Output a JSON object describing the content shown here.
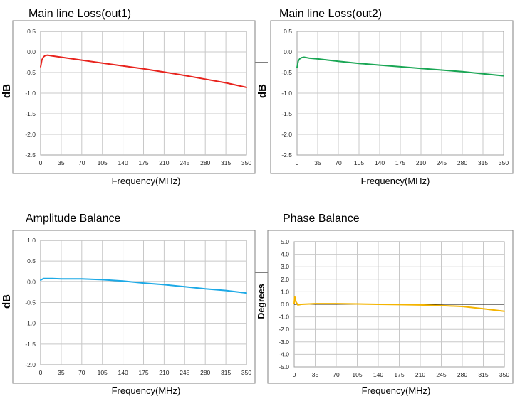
{
  "chart_data": [
    {
      "type": "line",
      "title": "Main line Loss(out1)",
      "xlabel": "Frequency(MHz)",
      "ylabel": "dB",
      "xlim": [
        0,
        350
      ],
      "ylim": [
        -2.5,
        0.5
      ],
      "x_ticks": [
        0,
        35,
        70,
        105,
        140,
        175,
        210,
        245,
        280,
        315,
        350
      ],
      "y_ticks": [
        "0.5",
        "0.0",
        "-0.5",
        "-1.0",
        "-1.5",
        "-2.0",
        "-2.5"
      ],
      "y_tick_values": [
        0.5,
        0.0,
        -0.5,
        -1.0,
        -1.5,
        -2.0,
        -2.5
      ],
      "grid": true,
      "series": [
        {
          "color": "#e8231d",
          "x": [
            0,
            2,
            5,
            8,
            12,
            20,
            35,
            70,
            105,
            140,
            175,
            210,
            245,
            280,
            315,
            350
          ],
          "y": [
            -0.36,
            -0.2,
            -0.12,
            -0.09,
            -0.08,
            -0.1,
            -0.13,
            -0.2,
            -0.27,
            -0.34,
            -0.41,
            -0.49,
            -0.57,
            -0.66,
            -0.75,
            -0.86
          ]
        }
      ]
    },
    {
      "type": "line",
      "title": "Main line Loss(out2)",
      "xlabel": "Frequency(MHz)",
      "ylabel": "dB",
      "xlim": [
        0,
        350
      ],
      "ylim": [
        -2.5,
        0.5
      ],
      "x_ticks": [
        0,
        35,
        70,
        105,
        140,
        175,
        210,
        245,
        280,
        315,
        350
      ],
      "y_ticks": [
        "0.5",
        "0.0",
        "-0.5",
        "-1.0",
        "-1.5",
        "-2.0",
        "-2.5"
      ],
      "y_tick_values": [
        0.5,
        0.0,
        -0.5,
        -1.0,
        -1.5,
        -2.0,
        -2.5
      ],
      "grid": true,
      "series": [
        {
          "color": "#19a654",
          "x": [
            0,
            2,
            5,
            8,
            12,
            20,
            35,
            70,
            105,
            140,
            175,
            210,
            245,
            280,
            315,
            350
          ],
          "y": [
            -0.38,
            -0.22,
            -0.16,
            -0.14,
            -0.13,
            -0.15,
            -0.17,
            -0.23,
            -0.28,
            -0.32,
            -0.36,
            -0.4,
            -0.44,
            -0.48,
            -0.53,
            -0.58
          ]
        }
      ]
    },
    {
      "type": "line",
      "title": "Amplitude Balance",
      "xlabel": "Frequency(MHz)",
      "ylabel": "dB",
      "xlim": [
        0,
        350
      ],
      "ylim": [
        -2.0,
        1.0
      ],
      "x_ticks": [
        0,
        35,
        70,
        105,
        140,
        175,
        210,
        245,
        280,
        315,
        350
      ],
      "y_ticks": [
        "1.0",
        "0.5",
        "0.0",
        "-0.5",
        "-1.0",
        "-1.5",
        "-2.0"
      ],
      "y_tick_values": [
        1.0,
        0.5,
        0.0,
        -0.5,
        -1.0,
        -1.5,
        -2.0
      ],
      "grid": true,
      "zero_line": true,
      "series": [
        {
          "color": "#1ca9e6",
          "x": [
            0,
            5,
            20,
            35,
            70,
            105,
            140,
            175,
            210,
            245,
            280,
            315,
            350
          ],
          "y": [
            0.04,
            0.08,
            0.08,
            0.07,
            0.07,
            0.05,
            0.02,
            -0.03,
            -0.07,
            -0.12,
            -0.17,
            -0.21,
            -0.27
          ]
        }
      ]
    },
    {
      "type": "line",
      "title": "Phase  Balance",
      "xlabel": "Frequency(MHz)",
      "ylabel": "Degrees",
      "xlim": [
        0,
        350
      ],
      "ylim": [
        -5.0,
        5.0
      ],
      "x_ticks": [
        0,
        35,
        70,
        105,
        140,
        175,
        210,
        245,
        280,
        315,
        350
      ],
      "y_ticks": [
        "5.0",
        "4.0",
        "3.0",
        "2.0",
        "1.0",
        "0.0",
        "-1.0",
        "-2.0",
        "-3.0",
        "-4.0",
        "-5.0"
      ],
      "y_tick_values": [
        5,
        4,
        3,
        2,
        1,
        0,
        -1,
        -2,
        -3,
        -4,
        -5
      ],
      "grid": true,
      "zero_line": true,
      "series": [
        {
          "color": "#f4b400",
          "x": [
            0,
            1,
            3,
            6,
            12,
            35,
            70,
            105,
            140,
            175,
            210,
            245,
            280,
            315,
            350
          ],
          "y": [
            0.05,
            0.6,
            0.2,
            -0.05,
            0.0,
            0.05,
            0.05,
            0.03,
            0.0,
            -0.02,
            -0.05,
            -0.1,
            -0.17,
            -0.35,
            -0.55
          ]
        }
      ]
    }
  ]
}
